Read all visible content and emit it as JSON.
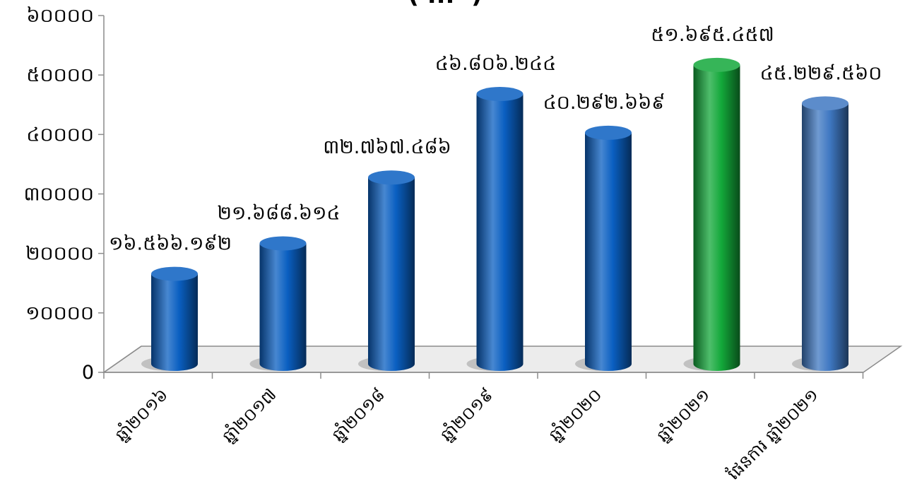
{
  "chart_data": {
    "type": "bar",
    "title": "( ... ​ )",
    "categories": [
      "ឆ្នាំ២០១៦",
      "ឆ្នាំ២០១៧",
      "ឆ្នាំ២០១៨",
      "ឆ្នាំ២០១៩",
      "ឆ្នាំ២០២០",
      "ឆ្នាំ២០២១",
      "ផែនការ ឆ្នាំ២០២១"
    ],
    "values": [
      16566.192,
      21688.614,
      32767.486,
      46806.244,
      40292.669,
      51695.457,
      45229.56
    ],
    "data_labels": [
      "១៦.៥៦៦.១៩២",
      "២១.៦៨៨.៦១៤",
      "៣២.៧៦៧.៤៨៦",
      "៤៦.៨០៦.២៤៤",
      "៤០.២៩២.៦៦៩",
      "៥១.៦៩៥.៤៥៧",
      "៤៥.២២៩.៥៦០"
    ],
    "ylim": [
      0,
      60000
    ],
    "yticks": [
      0,
      10000,
      20000,
      30000,
      40000,
      50000,
      60000
    ],
    "ytick_labels": [
      "0",
      "១០០០០",
      "២០០០០",
      "៣០០០០",
      "៤០០០០",
      "៥០០០០",
      "៦០០០០"
    ],
    "colors": [
      "#0a5fc1",
      "#0a5fc1",
      "#0a5fc1",
      "#0a5fc1",
      "#0a5fc1",
      "#13a83a",
      "#3f78c2"
    ],
    "grid": false,
    "legend": "none"
  }
}
